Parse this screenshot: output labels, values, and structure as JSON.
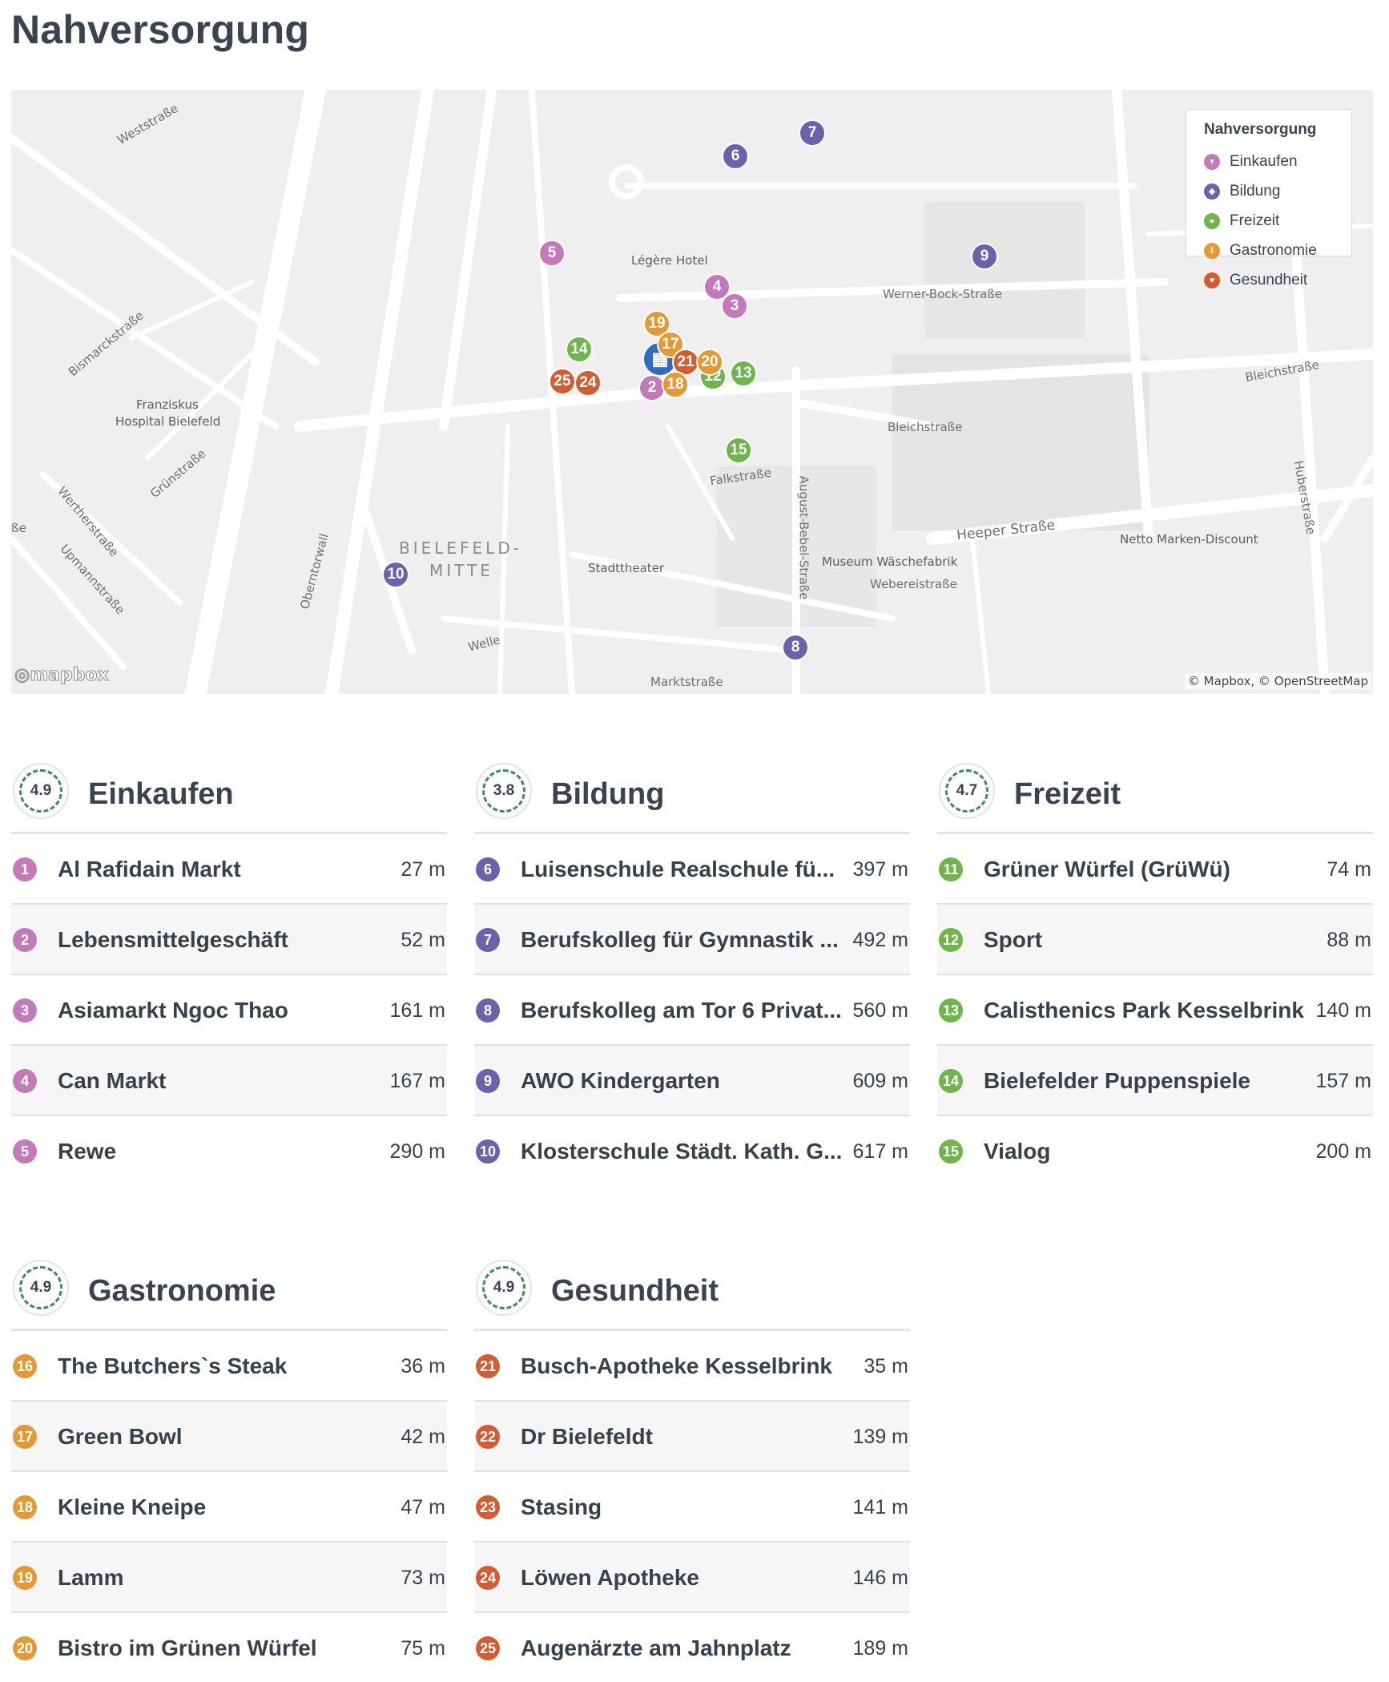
{
  "page": {
    "title": "Nahversorgung"
  },
  "colors": {
    "Einkaufen": "#c47ab8",
    "Bildung": "#6a62ab",
    "Freizeit": "#6fb54c",
    "Gastronomie": "#e49a34",
    "Gesundheit": "#d35c33",
    "home": "#2f6db8"
  },
  "map": {
    "legend": {
      "title": "Nahversorgung",
      "items": [
        {
          "label": "Einkaufen",
          "icon": "cart-icon"
        },
        {
          "label": "Bildung",
          "icon": "graduation-cap-icon"
        },
        {
          "label": "Freizeit",
          "icon": "leaf-icon"
        },
        {
          "label": "Gastronomie",
          "icon": "cutlery-icon"
        },
        {
          "label": "Gesundheit",
          "icon": "heart-icon"
        }
      ]
    },
    "labels": {
      "weststrasse": "Weststraße",
      "legere_hotel": "Légère Hotel",
      "werner_bock": "Werner-Bock-Straße",
      "bismarck": "Bismarckstraße",
      "franziskus1": "Franziskus",
      "franziskus2": "Hospital Bielefeld",
      "gruen": "Grünstraße",
      "werther": "Wertherstraße",
      "upmann": "Upmannstraße",
      "obernt": "Oberntorwall",
      "bielefeld1": "BIELEFELD-",
      "bielefeld2": "MITTE",
      "stadttheater": "Stadttheater",
      "falkstrasse": "Falkstraße",
      "august_bebel": "August-Bebel-Straße",
      "bleich1": "Bleichstraße",
      "bleich2": "Bleichstraße",
      "heeper": "Heeper Straße",
      "netto": "Netto Marken-Discount",
      "huber": "Huberstraße",
      "museum": "Museum Wäschefabrik",
      "webereistrasse": "Webereistraße",
      "welle": "Welle",
      "markt": "Marktstraße",
      "sse": "ße"
    },
    "logo": "mapbox",
    "attribution": "© Mapbox, © OpenStreetMap"
  },
  "categories": [
    {
      "title": "Einkaufen",
      "score": "4.9",
      "items": [
        {
          "num": "1",
          "name": "Al Rafidain Markt",
          "dist": "27 m"
        },
        {
          "num": "2",
          "name": "Lebensmittelgeschäft",
          "dist": "52 m"
        },
        {
          "num": "3",
          "name": "Asiamarkt Ngoc Thao",
          "dist": "161 m"
        },
        {
          "num": "4",
          "name": "Can Markt",
          "dist": "167 m"
        },
        {
          "num": "5",
          "name": "Rewe",
          "dist": "290 m"
        }
      ]
    },
    {
      "title": "Bildung",
      "score": "3.8",
      "items": [
        {
          "num": "6",
          "name": "Luisenschule Realschule fü...",
          "dist": "397 m"
        },
        {
          "num": "7",
          "name": "Berufskolleg für Gymnastik ...",
          "dist": "492 m"
        },
        {
          "num": "8",
          "name": "Berufskolleg am Tor 6 Privat...",
          "dist": "560 m"
        },
        {
          "num": "9",
          "name": "AWO Kindergarten",
          "dist": "609 m"
        },
        {
          "num": "10",
          "name": "Klosterschule Städt. Kath. G...",
          "dist": "617 m"
        }
      ]
    },
    {
      "title": "Freizeit",
      "score": "4.7",
      "items": [
        {
          "num": "11",
          "name": "Grüner Würfel (GrüWü)",
          "dist": "74 m"
        },
        {
          "num": "12",
          "name": "Sport",
          "dist": "88 m"
        },
        {
          "num": "13",
          "name": "Calisthenics Park Kesselbrink",
          "dist": "140 m"
        },
        {
          "num": "14",
          "name": "Bielefelder Puppenspiele",
          "dist": "157 m"
        },
        {
          "num": "15",
          "name": "Vialog",
          "dist": "200 m"
        }
      ]
    },
    {
      "title": "Gastronomie",
      "score": "4.9",
      "items": [
        {
          "num": "16",
          "name": "The Butchers`s Steak",
          "dist": "36 m"
        },
        {
          "num": "17",
          "name": "Green Bowl",
          "dist": "42 m"
        },
        {
          "num": "18",
          "name": "Kleine Kneipe",
          "dist": "47 m"
        },
        {
          "num": "19",
          "name": "Lamm",
          "dist": "73 m"
        },
        {
          "num": "20",
          "name": "Bistro im Grünen Würfel",
          "dist": "75 m"
        }
      ]
    },
    {
      "title": "Gesundheit",
      "score": "4.9",
      "items": [
        {
          "num": "21",
          "name": "Busch-Apotheke Kesselbrink",
          "dist": "35 m"
        },
        {
          "num": "22",
          "name": "Dr Bielefeldt",
          "dist": "139 m"
        },
        {
          "num": "23",
          "name": "Stasing",
          "dist": "141 m"
        },
        {
          "num": "24",
          "name": "Löwen Apotheke",
          "dist": "146 m"
        },
        {
          "num": "25",
          "name": "Augenärzte am Jahnplatz",
          "dist": "189 m"
        }
      ]
    }
  ]
}
